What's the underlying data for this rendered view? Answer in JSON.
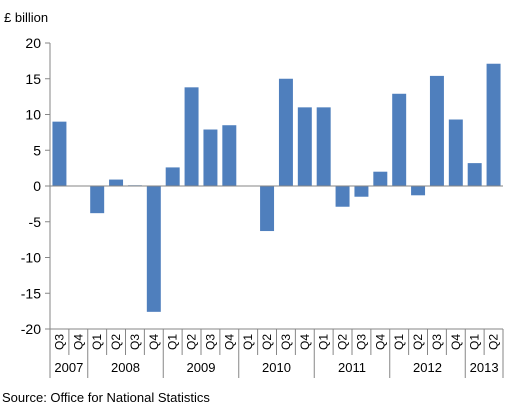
{
  "chart_data": {
    "type": "bar",
    "ylabel": "£ billion",
    "ylim": [
      -20,
      20
    ],
    "yticks": [
      20,
      15,
      10,
      5,
      0,
      -5,
      -10,
      -15,
      -20
    ],
    "grid": false,
    "bar_color": "#4f7fbd",
    "categories": [
      "Q3",
      "Q4",
      "Q1",
      "Q2",
      "Q3",
      "Q4",
      "Q1",
      "Q2",
      "Q3",
      "Q4",
      "Q1",
      "Q2",
      "Q3",
      "Q4",
      "Q1",
      "Q2",
      "Q3",
      "Q4",
      "Q1",
      "Q2",
      "Q3",
      "Q4",
      "Q1",
      "Q2"
    ],
    "years": [
      {
        "label": "2007",
        "span": 2
      },
      {
        "label": "2008",
        "span": 4
      },
      {
        "label": "2009",
        "span": 4
      },
      {
        "label": "2010",
        "span": 4
      },
      {
        "label": "2011",
        "span": 4
      },
      {
        "label": "2012",
        "span": 4
      },
      {
        "label": "2013",
        "span": 2
      }
    ],
    "values": [
      9.0,
      0.0,
      -3.8,
      0.9,
      0.1,
      -17.6,
      2.6,
      13.8,
      7.9,
      8.5,
      0.0,
      -6.3,
      15.0,
      11.0,
      11.0,
      -2.9,
      -1.5,
      2.0,
      12.9,
      -1.3,
      15.4,
      9.3,
      3.2,
      17.1
    ]
  },
  "source": "Source: Office for National Statistics"
}
